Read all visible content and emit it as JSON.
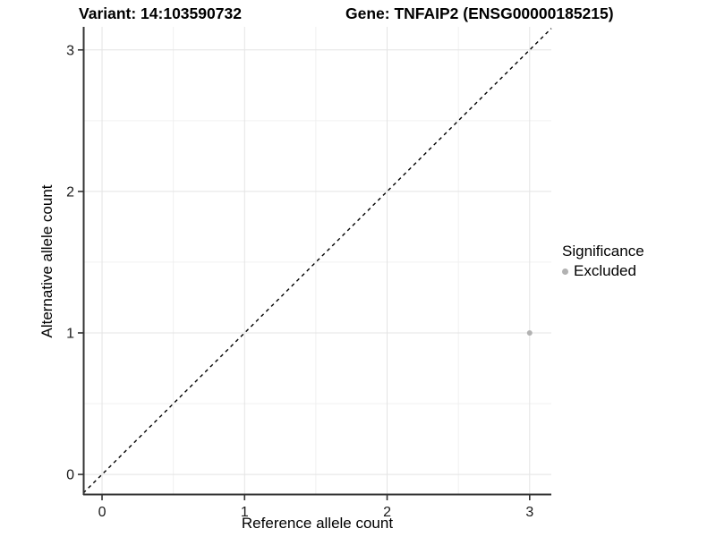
{
  "chart_data": {
    "type": "scatter",
    "title_left": "Variant: 14:103590732",
    "title_right": "Gene: TNFAIP2 (ENSG00000185215)",
    "xlabel": "Reference allele count",
    "ylabel": "Alternative allele count",
    "xlim": [
      -0.132,
      3.152
    ],
    "ylim": [
      -0.145,
      3.163
    ],
    "xticks": [
      0,
      1,
      2,
      3
    ],
    "yticks": [
      0,
      1,
      2,
      3
    ],
    "xticks_minor": [
      0.5,
      1.5,
      2.5
    ],
    "yticks_minor": [
      0.5,
      1.5,
      2.5
    ],
    "grid": "major-and-minor",
    "identity_line": {
      "slope": 1,
      "intercept": 0,
      "style": "dashed",
      "color": "#000000"
    },
    "legend": {
      "title": "Significance",
      "position": "right",
      "items": [
        {
          "label": "Excluded",
          "marker": "circle",
          "color": "#b2b2b2"
        }
      ]
    },
    "series": [
      {
        "name": "Excluded",
        "color": "#b2b2b2",
        "marker": "circle",
        "points": [
          {
            "x": 3,
            "y": 1
          }
        ]
      }
    ],
    "colors": {
      "background": "#ffffff",
      "axis_line": "#333333",
      "tick_mark": "#333333",
      "tick_label": "#1a1a1a",
      "grid_major": "#e4e4e4",
      "grid_minor": "#f0f0f0"
    }
  }
}
